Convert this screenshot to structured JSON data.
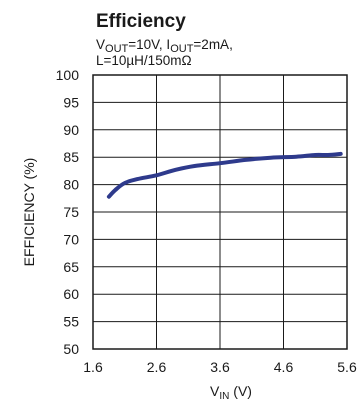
{
  "chart_data": {
    "type": "line",
    "title": "Efficiency",
    "subtitle": {
      "line1": {
        "v": "V",
        "v_sub": "OUT",
        "v_val": "=10V, ",
        "i": "I",
        "i_sub": "OUT",
        "i_val": "=2mA,"
      },
      "line2": "L=10µH/150mΩ"
    },
    "xlabel": {
      "main": "V",
      "sub": "IN",
      "unit": " (V)"
    },
    "ylabel": "EFFICIENCY (%)",
    "xlim": [
      1.6,
      5.6
    ],
    "ylim": [
      50,
      100
    ],
    "xticks": [
      "1.6",
      "2.6",
      "3.6",
      "4.6",
      "5.6"
    ],
    "xtick_values": [
      1.6,
      2.6,
      3.6,
      4.6,
      5.6
    ],
    "yticks": [
      "50",
      "55",
      "60",
      "65",
      "70",
      "75",
      "80",
      "85",
      "90",
      "95",
      "100"
    ],
    "ytick_values": [
      50,
      55,
      60,
      65,
      70,
      75,
      80,
      85,
      90,
      95,
      100
    ],
    "grid": true,
    "series": [
      {
        "color": "#2e3a8c",
        "x": [
          1.85,
          1.95,
          2.1,
          2.3,
          2.6,
          2.9,
          3.2,
          3.6,
          4.0,
          4.4,
          4.8,
          5.1,
          5.3,
          5.5
        ],
        "y": [
          77.8,
          79.0,
          80.3,
          81.0,
          81.7,
          82.7,
          83.4,
          83.9,
          84.5,
          84.9,
          85.1,
          85.4,
          85.4,
          85.6
        ]
      }
    ]
  }
}
